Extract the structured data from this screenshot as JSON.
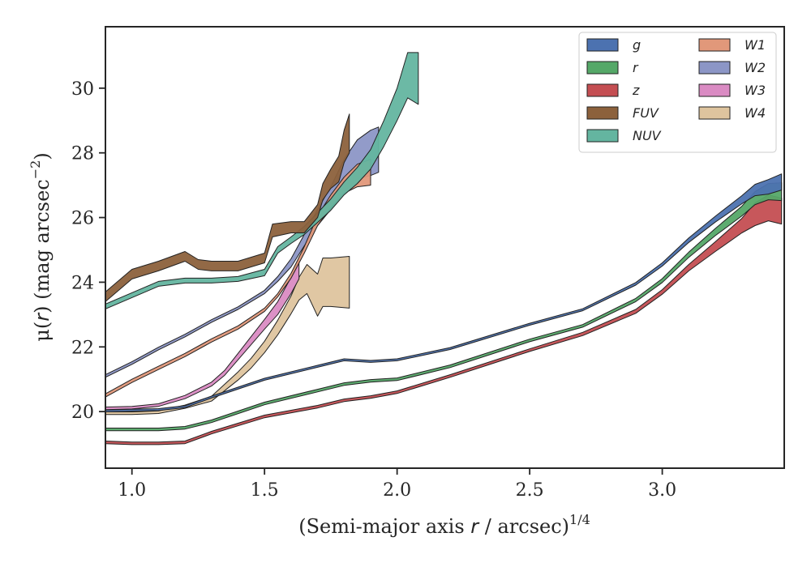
{
  "chart_data": {
    "type": "area",
    "xlabel_prefix": "(Semi-major axis ",
    "xlabel_var": "r",
    "xlabel_mid": " / arcsec)",
    "xlabel_sup": "1/4",
    "ylabel_prefix": "μ(",
    "ylabel_var": "r",
    "ylabel_mid": ") (mag arcsec",
    "ylabel_sup": "−2",
    "ylabel_suffix": ")",
    "xlim": [
      0.9,
      3.46
    ],
    "ylim": [
      31.9,
      18.25
    ],
    "y_inverted": true,
    "xticks": [
      1.0,
      1.5,
      2.0,
      2.5,
      3.0
    ],
    "xtick_labels": [
      "1.0",
      "1.5",
      "2.0",
      "2.5",
      "3.0"
    ],
    "yticks": [
      20,
      22,
      24,
      26,
      28,
      30
    ],
    "ytick_labels": [
      "20",
      "22",
      "24",
      "26",
      "28",
      "30"
    ],
    "grid": false,
    "legend_location": "upper-right",
    "legend_columns": 2,
    "series": [
      {
        "name": "g",
        "color": "#4c72b0",
        "x": [
          0.9,
          1.0,
          1.1,
          1.2,
          1.3,
          1.5,
          1.7,
          1.8,
          1.9,
          2.0,
          2.2,
          2.5,
          2.7,
          2.9,
          3.0,
          3.1,
          3.2,
          3.3,
          3.35,
          3.4,
          3.45
        ],
        "y": [
          20.02,
          20.04,
          20.06,
          20.15,
          20.45,
          21.0,
          21.4,
          21.6,
          21.55,
          21.6,
          21.95,
          22.7,
          23.15,
          23.95,
          24.55,
          25.3,
          25.95,
          26.55,
          26.85,
          26.95,
          27.1
        ],
        "w": [
          0.06,
          0.06,
          0.06,
          0.06,
          0.06,
          0.06,
          0.06,
          0.06,
          0.06,
          0.06,
          0.06,
          0.06,
          0.06,
          0.08,
          0.1,
          0.14,
          0.18,
          0.25,
          0.35,
          0.45,
          0.5
        ]
      },
      {
        "name": "r",
        "color": "#55a868",
        "x": [
          0.9,
          1.0,
          1.1,
          1.2,
          1.3,
          1.5,
          1.7,
          1.8,
          1.9,
          2.0,
          2.2,
          2.5,
          2.7,
          2.9,
          3.0,
          3.1,
          3.2,
          3.3,
          3.35,
          3.4,
          3.45
        ],
        "y": [
          19.45,
          19.45,
          19.45,
          19.5,
          19.7,
          20.25,
          20.65,
          20.85,
          20.95,
          21.0,
          21.4,
          22.2,
          22.65,
          23.45,
          24.05,
          24.85,
          25.55,
          26.2,
          26.6,
          26.8,
          26.8
        ],
        "w": [
          0.08,
          0.08,
          0.08,
          0.08,
          0.08,
          0.08,
          0.08,
          0.08,
          0.08,
          0.08,
          0.08,
          0.08,
          0.08,
          0.1,
          0.12,
          0.16,
          0.22,
          0.3,
          0.4,
          0.5,
          0.55
        ]
      },
      {
        "name": "z",
        "color": "#c44e52",
        "x": [
          0.9,
          1.0,
          1.1,
          1.2,
          1.3,
          1.5,
          1.7,
          1.8,
          1.9,
          2.0,
          2.2,
          2.5,
          2.7,
          2.9,
          3.0,
          3.1,
          3.2,
          3.3,
          3.35,
          3.4,
          3.45
        ],
        "y": [
          19.05,
          19.02,
          19.02,
          19.05,
          19.35,
          19.85,
          20.15,
          20.35,
          20.45,
          20.6,
          21.1,
          21.9,
          22.4,
          23.1,
          23.7,
          24.45,
          25.1,
          25.75,
          26.1,
          26.3,
          26.2
        ],
        "w": [
          0.08,
          0.08,
          0.08,
          0.08,
          0.08,
          0.08,
          0.08,
          0.08,
          0.08,
          0.08,
          0.08,
          0.08,
          0.1,
          0.12,
          0.14,
          0.2,
          0.3,
          0.45,
          0.7,
          0.8,
          0.8
        ]
      },
      {
        "name": "FUV",
        "color": "#8c613c",
        "x": [
          0.9,
          1.0,
          1.1,
          1.2,
          1.25,
          1.3,
          1.4,
          1.5,
          1.53,
          1.6,
          1.65,
          1.7,
          1.72,
          1.75,
          1.78,
          1.8,
          1.82
        ],
        "y": [
          23.55,
          24.25,
          24.5,
          24.8,
          24.55,
          24.5,
          24.5,
          24.75,
          25.6,
          25.7,
          25.7,
          26.2,
          26.8,
          27.2,
          27.5,
          28.2,
          28.6
        ],
        "w": [
          0.3,
          0.3,
          0.3,
          0.3,
          0.3,
          0.3,
          0.3,
          0.3,
          0.4,
          0.35,
          0.35,
          0.4,
          0.5,
          0.6,
          0.8,
          1.0,
          1.2
        ]
      },
      {
        "name": "NUV",
        "color": "#64b5a0",
        "x": [
          0.9,
          1.0,
          1.1,
          1.2,
          1.3,
          1.4,
          1.5,
          1.55,
          1.6,
          1.65,
          1.7,
          1.75,
          1.8,
          1.85,
          1.9,
          1.95,
          2.0,
          2.04,
          2.08
        ],
        "y": [
          23.25,
          23.6,
          23.95,
          24.05,
          24.05,
          24.1,
          24.3,
          25.0,
          25.3,
          25.6,
          26.0,
          26.4,
          26.9,
          27.3,
          27.8,
          28.6,
          29.5,
          30.4,
          30.3
        ],
        "w": [
          0.15,
          0.15,
          0.15,
          0.15,
          0.15,
          0.15,
          0.2,
          0.2,
          0.2,
          0.25,
          0.3,
          0.35,
          0.4,
          0.5,
          0.6,
          0.8,
          1.0,
          1.4,
          1.6
        ]
      },
      {
        "name": "W1",
        "color": "#e1987a",
        "x": [
          0.9,
          1.0,
          1.1,
          1.2,
          1.3,
          1.4,
          1.5,
          1.55,
          1.6,
          1.65,
          1.7,
          1.75,
          1.8,
          1.85,
          1.9
        ],
        "y": [
          20.5,
          20.95,
          21.35,
          21.75,
          22.2,
          22.6,
          23.15,
          23.6,
          24.2,
          25.0,
          25.9,
          26.5,
          27.0,
          27.3,
          27.4
        ],
        "w": [
          0.1,
          0.1,
          0.1,
          0.1,
          0.1,
          0.1,
          0.1,
          0.1,
          0.15,
          0.2,
          0.3,
          0.4,
          0.5,
          0.7,
          0.8
        ]
      },
      {
        "name": "W2",
        "color": "#8c96c6",
        "x": [
          0.9,
          1.0,
          1.1,
          1.2,
          1.3,
          1.4,
          1.5,
          1.55,
          1.6,
          1.65,
          1.7,
          1.75,
          1.8,
          1.85,
          1.9,
          1.93
        ],
        "y": [
          21.1,
          21.5,
          21.95,
          22.35,
          22.8,
          23.2,
          23.7,
          24.1,
          24.6,
          25.3,
          26.0,
          26.6,
          27.3,
          27.8,
          28.0,
          28.1
        ],
        "w": [
          0.08,
          0.08,
          0.08,
          0.08,
          0.08,
          0.08,
          0.1,
          0.15,
          0.25,
          0.35,
          0.5,
          0.7,
          1.0,
          1.2,
          1.4,
          1.4
        ]
      },
      {
        "name": "W3",
        "color": "#da8bc3",
        "x": [
          0.9,
          1.0,
          1.1,
          1.2,
          1.3,
          1.35,
          1.4,
          1.45,
          1.5,
          1.55,
          1.6,
          1.63
        ],
        "y": [
          20.1,
          20.12,
          20.2,
          20.45,
          20.85,
          21.2,
          21.7,
          22.2,
          22.7,
          23.2,
          23.9,
          24.4
        ],
        "w": [
          0.08,
          0.08,
          0.08,
          0.1,
          0.12,
          0.15,
          0.2,
          0.25,
          0.3,
          0.4,
          0.5,
          0.6
        ]
      },
      {
        "name": "W4",
        "color": "#dec49e",
        "x": [
          0.9,
          1.0,
          1.1,
          1.2,
          1.3,
          1.4,
          1.45,
          1.5,
          1.55,
          1.6,
          1.63,
          1.66,
          1.7,
          1.72,
          1.75,
          1.82
        ],
        "y": [
          19.95,
          19.95,
          19.98,
          20.15,
          20.4,
          21.1,
          21.5,
          22.0,
          22.6,
          23.3,
          23.8,
          24.1,
          23.6,
          24.0,
          24.0,
          24.0
        ],
        "w": [
          0.08,
          0.08,
          0.08,
          0.1,
          0.15,
          0.25,
          0.3,
          0.35,
          0.45,
          0.55,
          0.7,
          0.9,
          1.3,
          1.5,
          1.5,
          1.6
        ]
      }
    ]
  }
}
